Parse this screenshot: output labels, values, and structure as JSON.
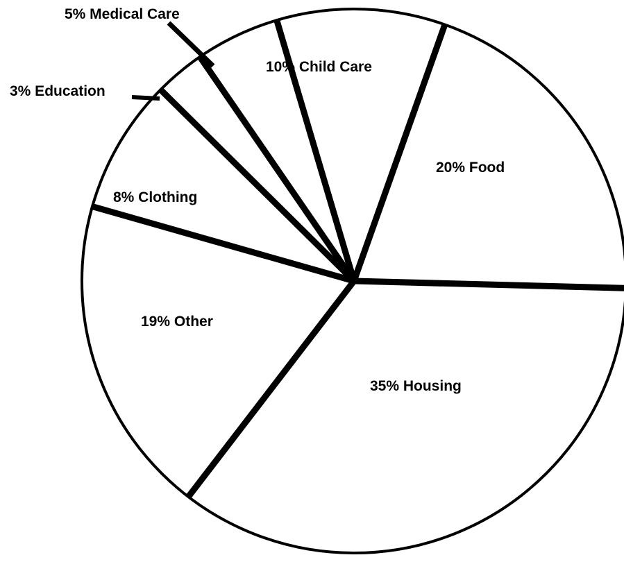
{
  "chart_data": {
    "type": "pie",
    "title": "",
    "slices": [
      {
        "label": "20% Food",
        "value": 20
      },
      {
        "label": "10% Child Care",
        "value": 10
      },
      {
        "label": "5% Medical Care",
        "value": 5
      },
      {
        "label": "3% Education",
        "value": 3
      },
      {
        "label": "8% Clothing",
        "value": 8
      },
      {
        "label": "19% Other",
        "value": 19
      },
      {
        "label": "35% Housing",
        "value": 35
      }
    ],
    "colors": {
      "fill": "#ffffff",
      "stroke": "#000000"
    },
    "legend": "none"
  }
}
